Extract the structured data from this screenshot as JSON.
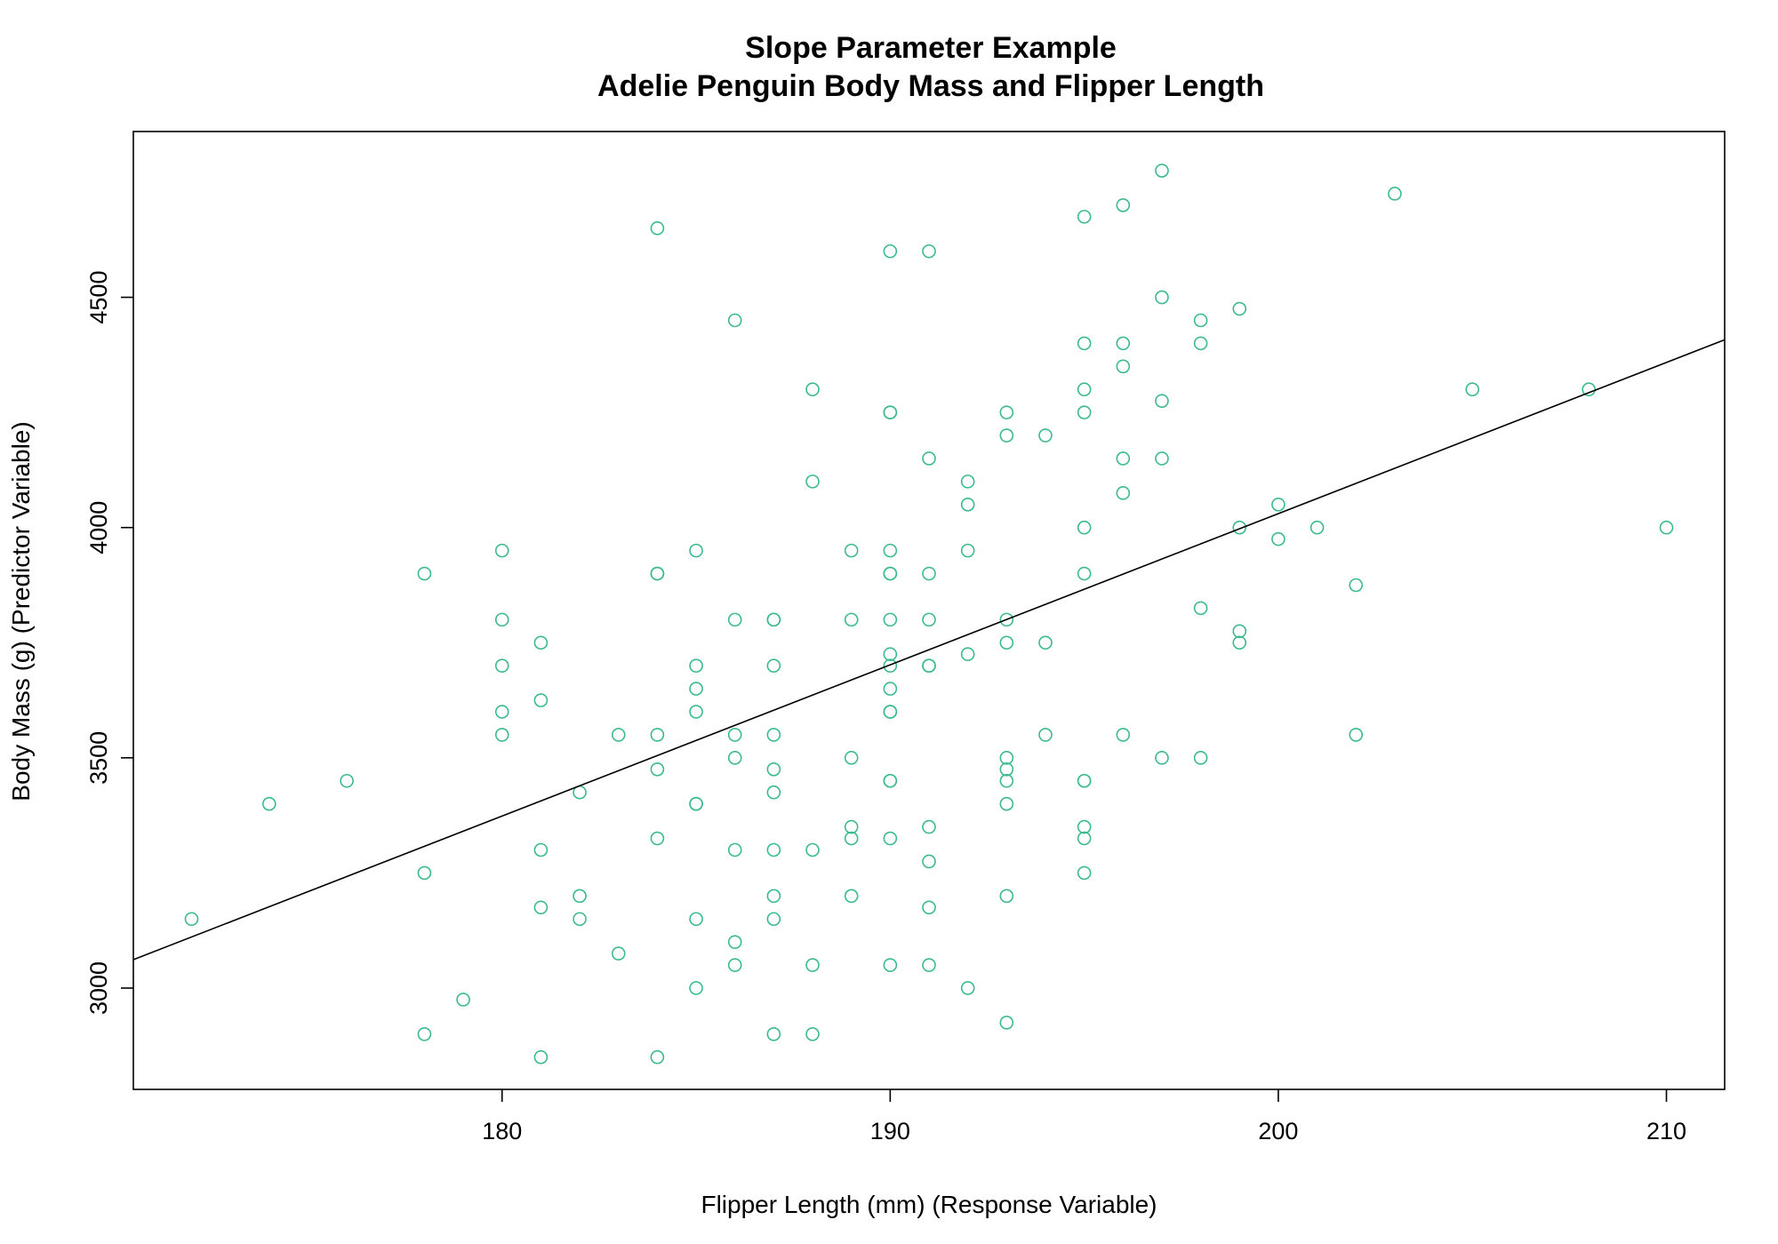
{
  "chart_data": {
    "type": "scatter",
    "title": "Slope Parameter Example",
    "subtitle": "Adelie Penguin Body Mass and Flipper Length",
    "xlabel": "Flipper Length (mm) (Response Variable)",
    "ylabel": "Body Mass (g) (Predictor Variable)",
    "xlim": [
      170.5,
      211.5
    ],
    "ylim": [
      2780,
      4860
    ],
    "xticks": [
      180,
      190,
      200,
      210
    ],
    "xtick_labels": [
      "180",
      "190",
      "200",
      "210"
    ],
    "yticks": [
      3000,
      3500,
      4000,
      4500
    ],
    "ytick_labels": [
      "3000",
      "3500",
      "4000",
      "4500"
    ],
    "grid": false,
    "point_color": "#3bba8e",
    "line_color": "#000000",
    "fit_line": {
      "intercept": -2535.8,
      "slope": 32.83
    },
    "points": [
      [
        172,
        3150
      ],
      [
        174,
        3400
      ],
      [
        176,
        3450
      ],
      [
        178,
        3900
      ],
      [
        178,
        3250
      ],
      [
        178,
        2900
      ],
      [
        179,
        2975
      ],
      [
        180,
        3950
      ],
      [
        180,
        3800
      ],
      [
        180,
        3700
      ],
      [
        180,
        3600
      ],
      [
        180,
        3550
      ],
      [
        181,
        3750
      ],
      [
        181,
        3625
      ],
      [
        181,
        3300
      ],
      [
        181,
        3175
      ],
      [
        181,
        2850
      ],
      [
        182,
        3425
      ],
      [
        182,
        3200
      ],
      [
        182,
        3150
      ],
      [
        183,
        3550
      ],
      [
        183,
        3075
      ],
      [
        184,
        4650
      ],
      [
        184,
        3900
      ],
      [
        184,
        3900
      ],
      [
        184,
        3550
      ],
      [
        184,
        3475
      ],
      [
        184,
        3325
      ],
      [
        184,
        2850
      ],
      [
        185,
        3950
      ],
      [
        185,
        3700
      ],
      [
        185,
        3650
      ],
      [
        185,
        3600
      ],
      [
        185,
        3400
      ],
      [
        185,
        3400
      ],
      [
        185,
        3150
      ],
      [
        185,
        3000
      ],
      [
        186,
        4450
      ],
      [
        186,
        3800
      ],
      [
        186,
        3550
      ],
      [
        186,
        3500
      ],
      [
        186,
        3300
      ],
      [
        186,
        3100
      ],
      [
        186,
        3050
      ],
      [
        187,
        3800
      ],
      [
        187,
        3800
      ],
      [
        187,
        3700
      ],
      [
        187,
        3550
      ],
      [
        187,
        3475
      ],
      [
        187,
        3425
      ],
      [
        187,
        3300
      ],
      [
        187,
        3200
      ],
      [
        187,
        3150
      ],
      [
        187,
        2900
      ],
      [
        188,
        4300
      ],
      [
        188,
        4100
      ],
      [
        188,
        3300
      ],
      [
        188,
        3050
      ],
      [
        188,
        2900
      ],
      [
        189,
        3950
      ],
      [
        189,
        3800
      ],
      [
        189,
        3500
      ],
      [
        189,
        3350
      ],
      [
        189,
        3325
      ],
      [
        189,
        3200
      ],
      [
        190,
        4600
      ],
      [
        190,
        4250
      ],
      [
        190,
        4250
      ],
      [
        190,
        3950
      ],
      [
        190,
        3900
      ],
      [
        190,
        3900
      ],
      [
        190,
        3800
      ],
      [
        190,
        3725
      ],
      [
        190,
        3700
      ],
      [
        190,
        3650
      ],
      [
        190,
        3600
      ],
      [
        190,
        3600
      ],
      [
        190,
        3450
      ],
      [
        190,
        3450
      ],
      [
        190,
        3325
      ],
      [
        190,
        3050
      ],
      [
        191,
        4600
      ],
      [
        191,
        4150
      ],
      [
        191,
        3900
      ],
      [
        191,
        3800
      ],
      [
        191,
        3700
      ],
      [
        191,
        3700
      ],
      [
        191,
        3350
      ],
      [
        191,
        3275
      ],
      [
        191,
        3175
      ],
      [
        191,
        3050
      ],
      [
        192,
        4100
      ],
      [
        192,
        4050
      ],
      [
        192,
        3950
      ],
      [
        192,
        3725
      ],
      [
        192,
        3000
      ],
      [
        193,
        4250
      ],
      [
        193,
        4200
      ],
      [
        193,
        3800
      ],
      [
        193,
        3750
      ],
      [
        193,
        3500
      ],
      [
        193,
        3475
      ],
      [
        193,
        3450
      ],
      [
        193,
        3400
      ],
      [
        193,
        3200
      ],
      [
        193,
        2925
      ],
      [
        194,
        4200
      ],
      [
        194,
        3750
      ],
      [
        194,
        3550
      ],
      [
        195,
        4675
      ],
      [
        195,
        4400
      ],
      [
        195,
        4300
      ],
      [
        195,
        4250
      ],
      [
        195,
        4000
      ],
      [
        195,
        3900
      ],
      [
        195,
        3450
      ],
      [
        195,
        3450
      ],
      [
        195,
        3350
      ],
      [
        195,
        3325
      ],
      [
        195,
        3250
      ],
      [
        196,
        4700
      ],
      [
        196,
        4400
      ],
      [
        196,
        4350
      ],
      [
        196,
        4150
      ],
      [
        196,
        4075
      ],
      [
        196,
        3550
      ],
      [
        197,
        4775
      ],
      [
        197,
        4500
      ],
      [
        197,
        4275
      ],
      [
        197,
        4150
      ],
      [
        197,
        3500
      ],
      [
        198,
        4450
      ],
      [
        198,
        4400
      ],
      [
        198,
        3825
      ],
      [
        198,
        3500
      ],
      [
        199,
        4475
      ],
      [
        199,
        4000
      ],
      [
        199,
        3775
      ],
      [
        199,
        3750
      ],
      [
        200,
        4050
      ],
      [
        200,
        3975
      ],
      [
        201,
        4000
      ],
      [
        202,
        3875
      ],
      [
        202,
        3550
      ],
      [
        203,
        4725
      ],
      [
        205,
        4300
      ],
      [
        208,
        4300
      ],
      [
        210,
        4000
      ]
    ]
  }
}
